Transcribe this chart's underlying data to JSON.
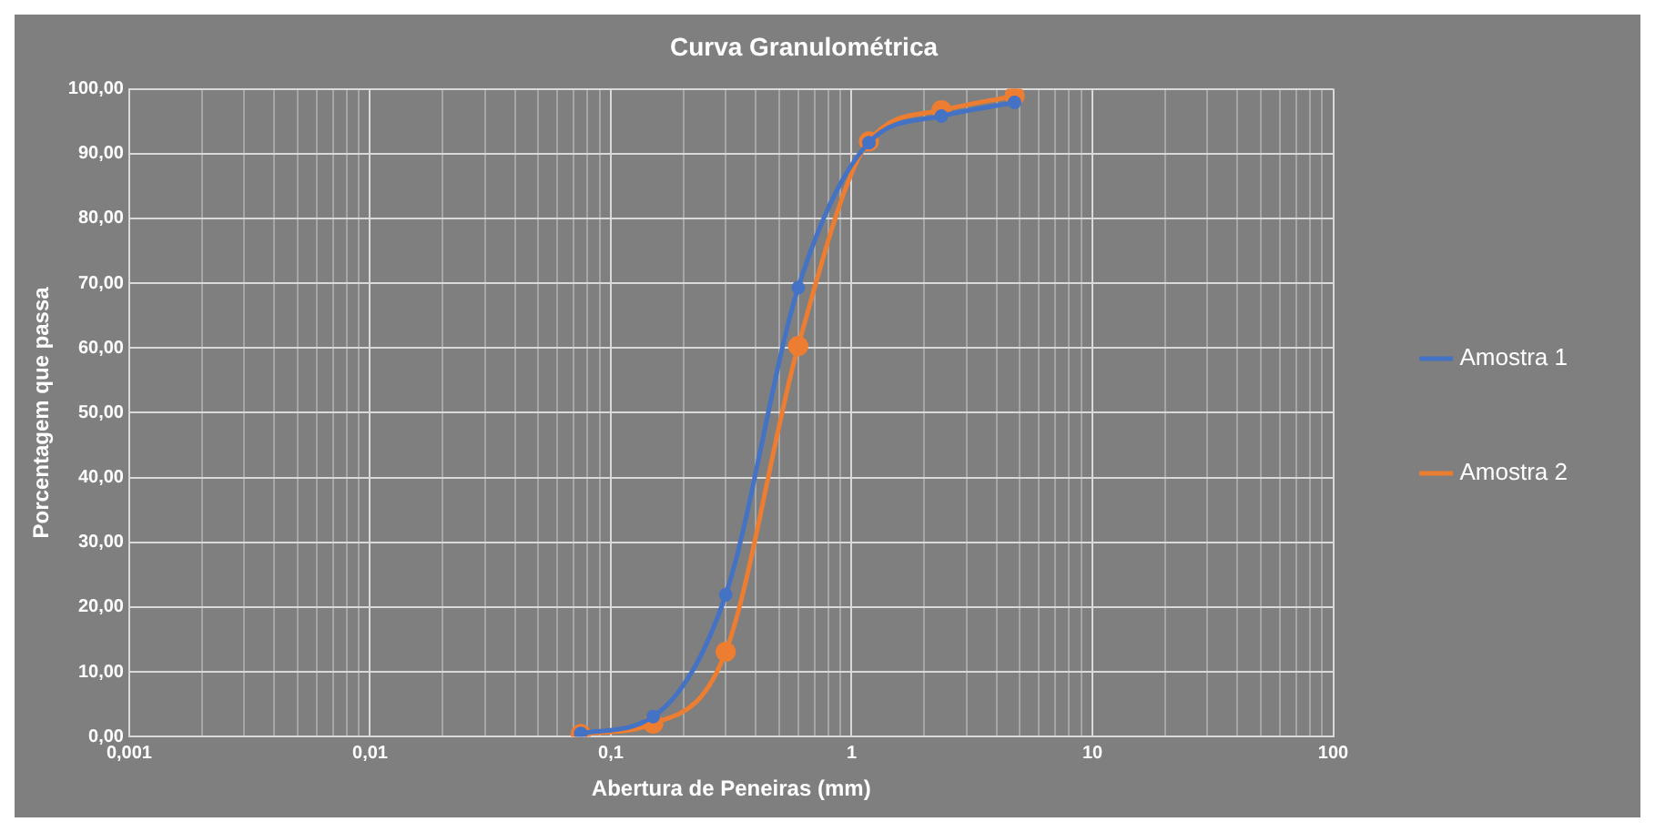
{
  "chart_data": {
    "type": "line",
    "title": "Curva Granulométrica",
    "xlabel": "Abertura de Peneiras (mm)",
    "ylabel": "Porcentagem que passa",
    "x": [
      0.075,
      0.15,
      0.3,
      0.6,
      1.18,
      2.36,
      4.75
    ],
    "series": [
      {
        "name": "Amostra 1",
        "color": "#4472c4",
        "values": [
          0.5,
          3.1,
          21.9,
          69.3,
          91.7,
          95.8,
          97.9
        ]
      },
      {
        "name": "Amostra 2",
        "color": "#ed7d31",
        "values": [
          0.4,
          2.0,
          13.1,
          60.3,
          91.9,
          96.7,
          98.9
        ]
      }
    ],
    "log": "x",
    "xlim": [
      0.001,
      100
    ],
    "ylim": [
      0,
      100
    ],
    "xticks": [
      {
        "value": 0.001,
        "label": "0,001"
      },
      {
        "value": 0.002,
        "label": null
      },
      {
        "value": 0.003,
        "label": null
      },
      {
        "value": 0.004,
        "label": null
      },
      {
        "value": 0.005,
        "label": null
      },
      {
        "value": 0.006,
        "label": null
      },
      {
        "value": 0.007,
        "label": null
      },
      {
        "value": 0.008,
        "label": null
      },
      {
        "value": 0.009,
        "label": null
      },
      {
        "value": 0.01,
        "label": "0,01"
      },
      {
        "value": 0.02,
        "label": null
      },
      {
        "value": 0.03,
        "label": null
      },
      {
        "value": 0.04,
        "label": null
      },
      {
        "value": 0.05,
        "label": null
      },
      {
        "value": 0.06,
        "label": null
      },
      {
        "value": 0.07,
        "label": null
      },
      {
        "value": 0.08,
        "label": null
      },
      {
        "value": 0.09,
        "label": null
      },
      {
        "value": 0.1,
        "label": "0,1"
      },
      {
        "value": 0.2,
        "label": null
      },
      {
        "value": 0.3,
        "label": null
      },
      {
        "value": 0.4,
        "label": null
      },
      {
        "value": 0.5,
        "label": null
      },
      {
        "value": 0.6,
        "label": null
      },
      {
        "value": 0.7,
        "label": null
      },
      {
        "value": 0.8,
        "label": null
      },
      {
        "value": 0.9,
        "label": null
      },
      1,
      {
        "value": 2,
        "label": null
      },
      {
        "value": 3,
        "label": null
      },
      {
        "value": 4,
        "label": null
      },
      {
        "value": 5,
        "label": null
      },
      {
        "value": 6,
        "label": null
      },
      {
        "value": 7,
        "label": null
      },
      {
        "value": 8,
        "label": null
      },
      {
        "value": 9,
        "label": null
      },
      10,
      {
        "value": 20,
        "label": null
      },
      {
        "value": 30,
        "label": null
      },
      {
        "value": 40,
        "label": null
      },
      {
        "value": 50,
        "label": null
      },
      {
        "value": 60,
        "label": null
      },
      {
        "value": 70,
        "label": null
      },
      {
        "value": 80,
        "label": null
      },
      {
        "value": 90,
        "label": null
      },
      100
    ],
    "yticks": [
      {
        "value": 0,
        "label": "0,00"
      },
      {
        "value": 10,
        "label": "10,00"
      },
      {
        "value": 20,
        "label": "20,00"
      },
      {
        "value": 30,
        "label": "30,00"
      },
      {
        "value": 40,
        "label": "40,00"
      },
      {
        "value": 50,
        "label": "50,00"
      },
      {
        "value": 60,
        "label": "60,00"
      },
      {
        "value": 70,
        "label": "70,00"
      },
      {
        "value": 80,
        "label": "80,00"
      },
      {
        "value": 90,
        "label": "90,00"
      },
      {
        "value": 100,
        "label": "100,00"
      }
    ],
    "grid": true,
    "legend": "right",
    "marker": "circle",
    "line_style": "solid"
  }
}
